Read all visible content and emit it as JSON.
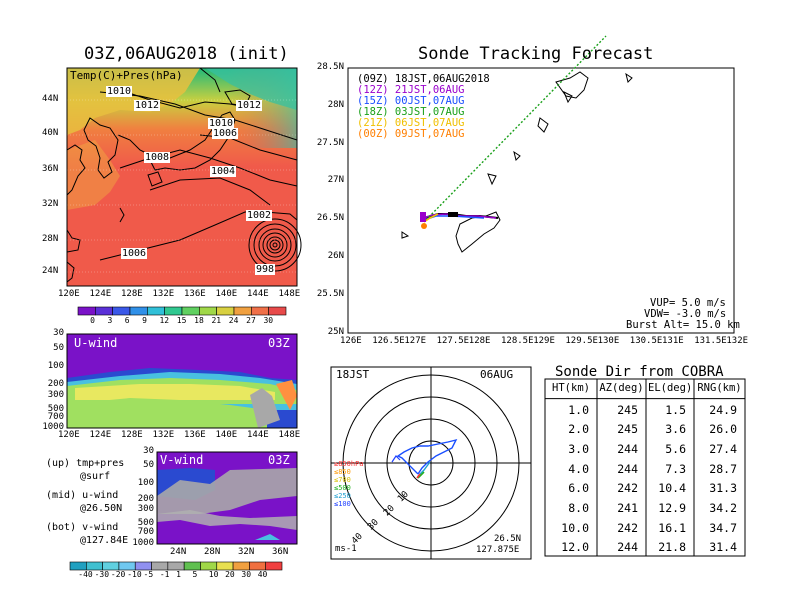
{
  "map_panel": {
    "title": "03Z,06AUG2018 (init)",
    "subtitle": "Temp(C)+Pres(hPa)",
    "lat_ticks": [
      "44N",
      "40N",
      "36N",
      "32N",
      "28N",
      "24N"
    ],
    "lon_ticks": [
      "120E",
      "124E",
      "128E",
      "132E",
      "136E",
      "140E",
      "144E",
      "148E"
    ],
    "isobar_labels": [
      "1010",
      "1012",
      "1012",
      "1010",
      "1006",
      "1008",
      "1004",
      "1002",
      "1006",
      "998"
    ],
    "colorbar_ticks": [
      "0",
      "3",
      "6",
      "9",
      "12",
      "15",
      "18",
      "21",
      "24",
      "27",
      "30"
    ]
  },
  "uwind_panel": {
    "label": "U-wind",
    "time": "03Z",
    "p_ticks": [
      "30",
      "50",
      "100",
      "200",
      "300",
      "500",
      "700",
      "1000"
    ],
    "lon_ticks": [
      "120E",
      "124E",
      "128E",
      "132E",
      "136E",
      "140E",
      "144E",
      "148E"
    ]
  },
  "vwind_panel": {
    "label": "V-wind",
    "time": "03Z",
    "p_ticks": [
      "30",
      "50",
      "100",
      "200",
      "300",
      "500",
      "700",
      "1000"
    ],
    "lat_ticks": [
      "24N",
      "28N",
      "32N",
      "36N"
    ]
  },
  "legend_text": {
    "up": "(up) tmp+pres",
    "up2": "@surf",
    "mid": "(mid) u-wind",
    "mid2": "@26.50N",
    "bot": "(bot) v-wind",
    "bot2": "@127.84E"
  },
  "wind_colorbar_ticks": [
    "-40",
    "-30",
    "-20",
    "-10",
    "-5",
    "-1",
    "1",
    "5",
    "10",
    "20",
    "30",
    "40"
  ],
  "track_panel": {
    "title": "Sonde Tracking Forecast",
    "lat_ticks": [
      "28.5N",
      "28N",
      "27.5N",
      "27N",
      "26.5N",
      "26N",
      "25.5N",
      "25N"
    ],
    "lon_ticks": [
      "126E",
      "126.5E",
      "127E",
      "127.5E",
      "128E",
      "128.5E",
      "129E",
      "129.5E",
      "130E",
      "130.5E",
      "131E",
      "131.5E",
      "132E"
    ],
    "legend": [
      {
        "text": "(09Z) 18JST,06AUG2018",
        "color": "#000000"
      },
      {
        "text": "(12Z) 21JST,06AUG",
        "color": "#9900cc"
      },
      {
        "text": "(15Z) 00JST,07AUG",
        "color": "#1a4fff"
      },
      {
        "text": "(18Z) 03JST,07AUG",
        "color": "#1aa01a"
      },
      {
        "text": "(21Z) 06JST,07AUG",
        "color": "#f0c000"
      },
      {
        "text": "(00Z) 09JST,07AUG",
        "color": "#ff7f00"
      }
    ],
    "params": [
      "VUP= 5.0 m/s",
      "VDW= -3.0 m/s",
      "Burst Alt= 15.0 km"
    ]
  },
  "polar_panel": {
    "time": "18JST",
    "date": "06AUG",
    "levels": [
      {
        "text": "≥850hPa",
        "color": "#ff3030"
      },
      {
        "text": "≤850",
        "color": "#ff9900"
      },
      {
        "text": "≤700",
        "color": "#d8c000"
      },
      {
        "text": "≤500",
        "color": "#20b020"
      },
      {
        "text": "≤250",
        "color": "#20a0d0"
      },
      {
        "text": "≤100",
        "color": "#2040ff"
      }
    ],
    "ring_labels": [
      "10",
      "20",
      "30",
      "40"
    ],
    "units": "ms-1",
    "loc_lat": "26.5N",
    "loc_lon": "127.875E"
  },
  "chart_data": {
    "type": "table",
    "title": "Sonde Dir from COBRA",
    "columns": [
      "HT(km)",
      "AZ(deg)",
      "EL(deg)",
      "RNG(km)"
    ],
    "rows": [
      [
        "1.0",
        "245",
        "1.5",
        "24.9"
      ],
      [
        "2.0",
        "245",
        "3.6",
        "26.0"
      ],
      [
        "3.0",
        "244",
        "5.6",
        "27.4"
      ],
      [
        "4.0",
        "244",
        "7.3",
        "28.7"
      ],
      [
        "6.0",
        "242",
        "10.4",
        "31.3"
      ],
      [
        "8.0",
        "241",
        "12.9",
        "34.2"
      ],
      [
        "10.0",
        "242",
        "16.1",
        "34.7"
      ],
      [
        "12.0",
        "244",
        "21.8",
        "31.4"
      ]
    ]
  }
}
